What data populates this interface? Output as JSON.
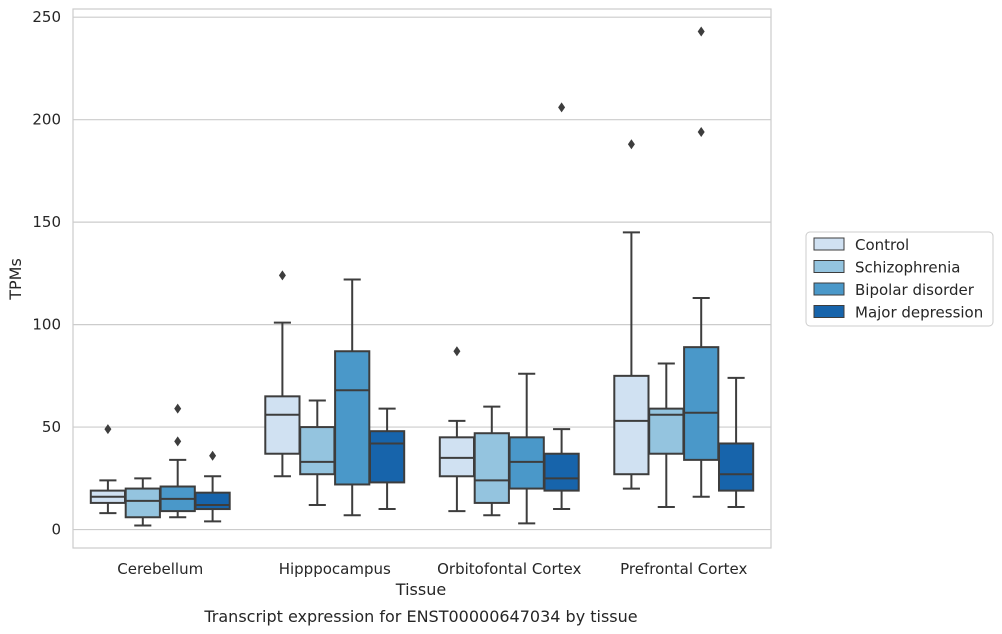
{
  "chart_data": {
    "type": "box",
    "title": "",
    "caption": "Transcript expression for ENST00000647034 by tissue",
    "xlabel": "Tissue",
    "ylabel": "TPMs",
    "ylim": [
      -9,
      254
    ],
    "yticks": [
      0,
      50,
      100,
      150,
      200,
      250
    ],
    "categories": [
      "Cerebellum",
      "Hipppocampus",
      "Orbitofontal Cortex",
      "Prefrontal Cortex"
    ],
    "grid": "horizontal",
    "legend_position": "right",
    "series": [
      {
        "name": "Control",
        "color": "#d0e1f2",
        "boxes": [
          {
            "whisker_low": 8,
            "q1": 13,
            "median": 16,
            "q3": 19,
            "whisker_high": 24,
            "outliers": [
              49
            ]
          },
          {
            "whisker_low": 26,
            "q1": 37,
            "median": 56,
            "q3": 65,
            "whisker_high": 101,
            "outliers": [
              124
            ]
          },
          {
            "whisker_low": 9,
            "q1": 26,
            "median": 35,
            "q3": 45,
            "whisker_high": 53,
            "outliers": [
              87
            ]
          },
          {
            "whisker_low": 20,
            "q1": 27,
            "median": 53,
            "q3": 75,
            "whisker_high": 145,
            "outliers": [
              188
            ]
          }
        ]
      },
      {
        "name": "Schizophrenia",
        "color": "#94c4df",
        "boxes": [
          {
            "whisker_low": 2,
            "q1": 6,
            "median": 14,
            "q3": 20,
            "whisker_high": 25,
            "outliers": []
          },
          {
            "whisker_low": 12,
            "q1": 27,
            "median": 33,
            "q3": 50,
            "whisker_high": 63,
            "outliers": []
          },
          {
            "whisker_low": 7,
            "q1": 13,
            "median": 24,
            "q3": 47,
            "whisker_high": 60,
            "outliers": []
          },
          {
            "whisker_low": 11,
            "q1": 37,
            "median": 56,
            "q3": 59,
            "whisker_high": 81,
            "outliers": []
          }
        ]
      },
      {
        "name": "Bipolar disorder",
        "color": "#4a98c9",
        "boxes": [
          {
            "whisker_low": 6,
            "q1": 9,
            "median": 15,
            "q3": 21,
            "whisker_high": 34,
            "outliers": [
              43,
              59
            ]
          },
          {
            "whisker_low": 7,
            "q1": 22,
            "median": 68,
            "q3": 87,
            "whisker_high": 122,
            "outliers": []
          },
          {
            "whisker_low": 3,
            "q1": 20,
            "median": 33,
            "q3": 45,
            "whisker_high": 76,
            "outliers": []
          },
          {
            "whisker_low": 16,
            "q1": 34,
            "median": 57,
            "q3": 89,
            "whisker_high": 113,
            "outliers": [
              194,
              243
            ]
          }
        ]
      },
      {
        "name": "Major depression",
        "color": "#1764ab",
        "boxes": [
          {
            "whisker_low": 4,
            "q1": 10,
            "median": 12,
            "q3": 18,
            "whisker_high": 26,
            "outliers": [
              36
            ]
          },
          {
            "whisker_low": 10,
            "q1": 23,
            "median": 42,
            "q3": 48,
            "whisker_high": 59,
            "outliers": []
          },
          {
            "whisker_low": 10,
            "q1": 19,
            "median": 25,
            "q3": 37,
            "whisker_high": 49,
            "outliers": [
              206
            ]
          },
          {
            "whisker_low": 11,
            "q1": 19,
            "median": 27,
            "q3": 42,
            "whisker_high": 74,
            "outliers": []
          }
        ]
      }
    ]
  }
}
